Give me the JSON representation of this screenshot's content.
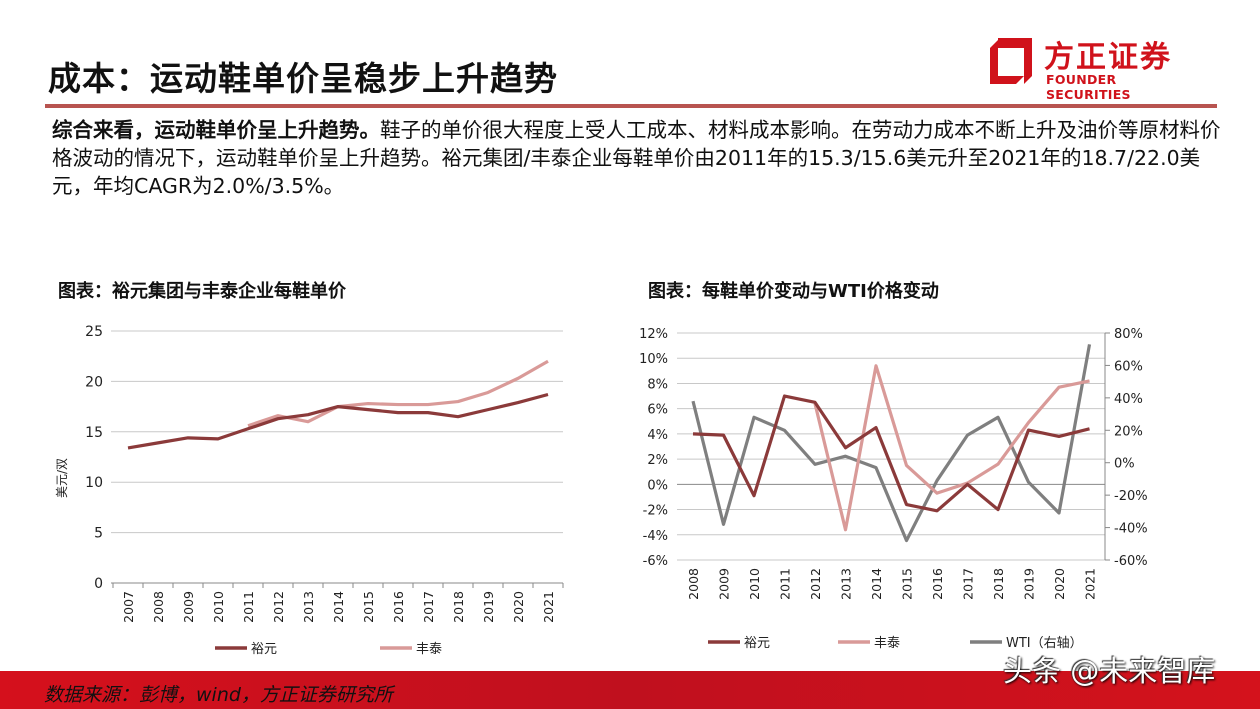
{
  "header": {
    "title": "成本：运动鞋单价呈稳步上升趋势",
    "logo_cn": "方正证券",
    "logo_en": "FOUNDER SECURITIES"
  },
  "summary": {
    "lead": "综合来看，运动鞋单价呈上升趋势。",
    "text": "鞋子的单价很大程度上受人工成本、材料成本影响。在劳动力成本不断上升及油价等原材料价格波动的情况下，运动鞋单价呈上升趋势。裕元集团/丰泰企业每鞋单价由2011年的15.3/15.6美元升至2021年的18.7/22.0美元，年均CAGR为2.0%/3.5%。"
  },
  "footer": {
    "source": "数据来源：彭博，wind，方正证券研究所",
    "watermark": "头条 @未来智库"
  },
  "colors": {
    "brand": "#d0121b",
    "yuyuan": "#8b3a3a",
    "fengtai": "#d99a98",
    "wti": "#7f7f7f"
  },
  "chart_data": [
    {
      "type": "line",
      "title": "图表：裕元集团与丰泰企业每鞋单价",
      "ylabel": "美元/双",
      "ylim": [
        0,
        25
      ],
      "yticks": [
        "0",
        "5",
        "10",
        "15",
        "20",
        "25"
      ],
      "categories": [
        "2007",
        "2008",
        "2009",
        "2010",
        "2011",
        "2012",
        "2013",
        "2014",
        "2015",
        "2016",
        "2017",
        "2018",
        "2019",
        "2020",
        "2021"
      ],
      "grid": true,
      "legend": "bottom",
      "series": [
        {
          "name": "裕元",
          "values": [
            13.4,
            13.9,
            14.4,
            14.3,
            15.3,
            16.3,
            16.7,
            17.5,
            17.2,
            16.9,
            16.9,
            16.5,
            17.2,
            17.9,
            18.7
          ]
        },
        {
          "name": "丰泰",
          "values": [
            null,
            null,
            null,
            null,
            15.6,
            16.6,
            16.0,
            17.5,
            17.8,
            17.7,
            17.7,
            18.0,
            18.9,
            20.3,
            22.0
          ]
        }
      ]
    },
    {
      "type": "line",
      "title": "图表：每鞋单价变动与WTI价格变动",
      "ylim": [
        -6,
        12
      ],
      "yticks": [
        "-6%",
        "-4%",
        "-2%",
        "0%",
        "2%",
        "4%",
        "6%",
        "8%",
        "10%",
        "12%"
      ],
      "y2lim": [
        -60,
        80
      ],
      "y2ticks": [
        "-60%",
        "-40%",
        "-20%",
        "0%",
        "20%",
        "40%",
        "60%",
        "80%"
      ],
      "categories": [
        "2008",
        "2009",
        "2010",
        "2011",
        "2012",
        "2013",
        "2014",
        "2015",
        "2016",
        "2017",
        "2018",
        "2019",
        "2020",
        "2021"
      ],
      "grid": true,
      "legend": "bottom",
      "series": [
        {
          "name": "裕元",
          "axis": "left",
          "values": [
            4.0,
            3.9,
            -0.9,
            7.0,
            6.5,
            2.9,
            4.5,
            -1.6,
            -2.1,
            0.0,
            -2.0,
            4.3,
            3.8,
            4.4
          ]
        },
        {
          "name": "丰泰",
          "axis": "left",
          "values": [
            null,
            null,
            null,
            null,
            6.4,
            -3.6,
            9.4,
            1.5,
            -0.7,
            0.1,
            1.6,
            4.9,
            7.7,
            8.2
          ]
        },
        {
          "name": "WTI（右轴）",
          "axis": "right",
          "values": [
            38,
            -38,
            28,
            20,
            -1,
            4,
            -3,
            -48,
            -11,
            17,
            28,
            -12,
            -31,
            73
          ]
        }
      ]
    }
  ]
}
